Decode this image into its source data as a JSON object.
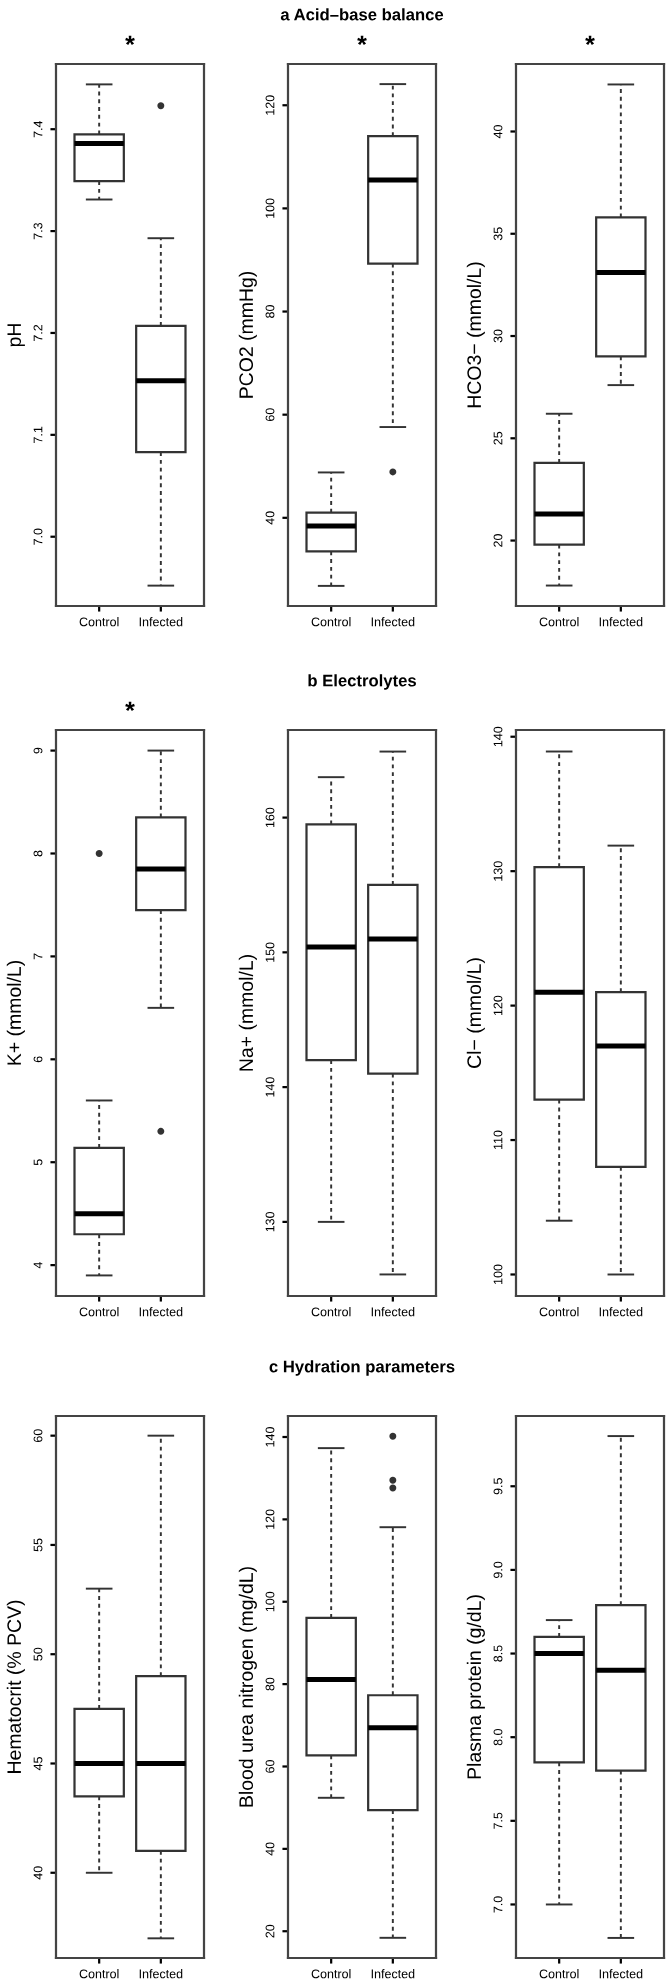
{
  "chart_data": [
    {
      "type": "box",
      "subtitle": "*",
      "ylabel": "pH",
      "categories": [
        "Control",
        "Infected"
      ],
      "ylim": [
        6.932,
        7.464
      ],
      "yticks": [
        {
          "value": 7.0,
          "label": "7.0"
        },
        7.1,
        7.2,
        7.3,
        7.4
      ],
      "grid": false,
      "boxes": [
        {
          "low": 7.331,
          "q1": 7.349,
          "median": 7.386,
          "q3": 7.395,
          "high": 7.444
        },
        {
          "low": 6.952,
          "q1": 7.083,
          "median": 7.153,
          "q3": 7.207,
          "high": 7.293,
          "outliers": [
            7.423
          ]
        }
      ]
    },
    {
      "type": "box",
      "title": "a Acid–base balance",
      "subtitle": "*",
      "ylabel": "PCO2 (mmHg)",
      "categories": [
        "Control",
        "Infected"
      ],
      "ylim": [
        22.9,
        128.0
      ],
      "yticks": [
        40,
        60,
        80,
        100,
        120
      ],
      "grid": false,
      "boxes": [
        {
          "low": 26.8,
          "q1": 33.5,
          "median": 38.4,
          "q3": 41.0,
          "high": 48.8
        },
        {
          "low": 57.6,
          "q1": 89.3,
          "median": 105.5,
          "q3": 114.0,
          "high": 124.1,
          "outliers": [
            48.9
          ]
        }
      ]
    },
    {
      "type": "box",
      "subtitle": "*",
      "ylabel": "HCO3− (mmol/L)",
      "categories": [
        "Control",
        "Infected"
      ],
      "ylim": [
        16.8,
        43.3
      ],
      "yticks": [
        20,
        25,
        30,
        35,
        40
      ],
      "grid": false,
      "boxes": [
        {
          "low": 17.8,
          "q1": 19.8,
          "median": 21.3,
          "q3": 23.8,
          "high": 26.2
        },
        {
          "low": 27.6,
          "q1": 29.0,
          "median": 33.1,
          "q3": 35.8,
          "high": 42.3
        }
      ]
    },
    {
      "type": "box",
      "subtitle": "*",
      "ylabel": "K+ (mmol/L)",
      "categories": [
        "Control",
        "Infected"
      ],
      "ylim": [
        3.7,
        9.2
      ],
      "yticks": [
        4,
        5,
        6,
        7,
        8,
        9
      ],
      "grid": false,
      "boxes": [
        {
          "low": 3.9,
          "q1": 4.3,
          "median": 4.5,
          "q3": 5.14,
          "high": 5.6,
          "outliers": [
            8.0
          ]
        },
        {
          "low": 6.5,
          "q1": 7.45,
          "median": 7.85,
          "q3": 8.35,
          "high": 9.0,
          "outliers": [
            5.3
          ]
        }
      ]
    },
    {
      "type": "box",
      "title": "b Electrolytes",
      "ylabel": "Na+ (mmol/L)",
      "categories": [
        "Control",
        "Infected"
      ],
      "ylim": [
        124.5,
        166.5
      ],
      "yticks": [
        130,
        140,
        150,
        160
      ],
      "grid": false,
      "boxes": [
        {
          "low": 130.0,
          "q1": 142.0,
          "median": 150.4,
          "q3": 159.5,
          "high": 163.0
        },
        {
          "low": 126.1,
          "q1": 141.0,
          "median": 151.0,
          "q3": 155.0,
          "high": 164.9
        }
      ]
    },
    {
      "type": "box",
      "ylabel": "Cl− (mmol/L)",
      "categories": [
        "Control",
        "Infected"
      ],
      "ylim": [
        98.4,
        140.5
      ],
      "yticks": [
        100,
        110,
        120,
        130,
        140
      ],
      "grid": false,
      "boxes": [
        {
          "low": 104.0,
          "q1": 113.0,
          "median": 121.0,
          "q3": 130.3,
          "high": 138.9
        },
        {
          "low": 100.0,
          "q1": 108.0,
          "median": 117.0,
          "q3": 121.0,
          "high": 131.9
        }
      ]
    },
    {
      "type": "box",
      "ylabel": "Hematocrit (% PCV)",
      "categories": [
        "Control",
        "Infected"
      ],
      "ylim": [
        36.1,
        60.9
      ],
      "yticks": [
        40,
        45,
        50,
        55,
        60
      ],
      "grid": false,
      "boxes": [
        {
          "low": 40.0,
          "q1": 43.5,
          "median": 45.0,
          "q3": 47.5,
          "high": 53.0
        },
        {
          "low": 37.0,
          "q1": 41.0,
          "median": 45.0,
          "q3": 49.0,
          "high": 60.0
        }
      ]
    },
    {
      "type": "box",
      "title": "c Hydration parameters",
      "ylabel": "Blood urea nitrogen (mg/dL)",
      "categories": [
        "Control",
        "Infected"
      ],
      "ylim": [
        13.5,
        145.1
      ],
      "yticks": [
        20,
        40,
        60,
        80,
        100,
        120,
        140
      ],
      "grid": false,
      "boxes": [
        {
          "low": 52.4,
          "q1": 62.7,
          "median": 81.1,
          "q3": 96.1,
          "high": 137.3
        },
        {
          "low": 18.4,
          "q1": 49.4,
          "median": 69.4,
          "q3": 77.3,
          "high": 118.1,
          "outliers": [
            127.6,
            129.5,
            140.2
          ]
        }
      ]
    },
    {
      "type": "box",
      "ylabel": "Plasma protein (g/dL)",
      "categories": [
        "Control",
        "Infected"
      ],
      "ylim": [
        6.68,
        9.92
      ],
      "yticks": [
        {
          "value": 7.0,
          "label": "7.0"
        },
        7.5,
        {
          "value": 8.0,
          "label": "8.0"
        },
        8.5,
        {
          "value": 9.0,
          "label": "9.0"
        },
        9.5
      ],
      "grid": false,
      "boxes": [
        {
          "low": 7.0,
          "q1": 7.85,
          "median": 8.5,
          "q3": 8.6,
          "high": 8.7
        },
        {
          "low": 6.8,
          "q1": 7.8,
          "median": 8.4,
          "q3": 8.79,
          "high": 9.8
        }
      ]
    }
  ]
}
